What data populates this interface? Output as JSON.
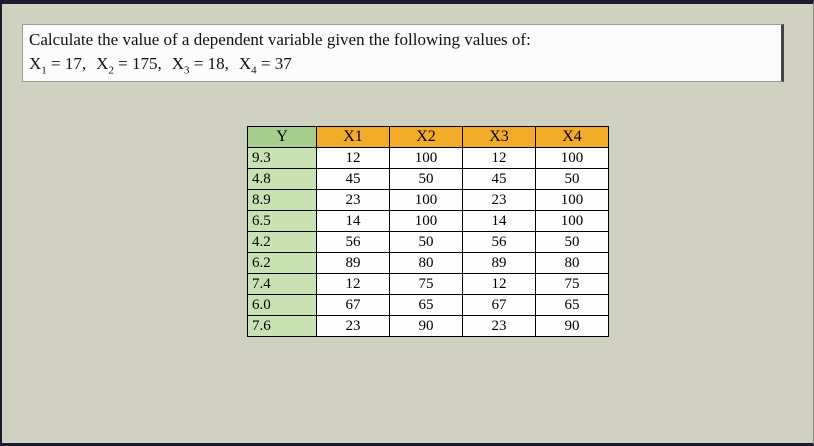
{
  "question": {
    "line1": "Calculate the value of a dependent variable given the following values of:",
    "givens": [
      {
        "name": "X",
        "sub": "1",
        "value": "17"
      },
      {
        "name": "X",
        "sub": "2",
        "value": "175"
      },
      {
        "name": "X",
        "sub": "3",
        "value": "18"
      },
      {
        "name": "X",
        "sub": "4",
        "value": "37"
      }
    ],
    "given_separator": ",  "
  },
  "table": {
    "headers": [
      "Y",
      "X1",
      "X2",
      "X3",
      "X4"
    ],
    "rows": [
      [
        "9.3",
        "12",
        "100",
        "12",
        "100"
      ],
      [
        "4.8",
        "45",
        "50",
        "45",
        "50"
      ],
      [
        "8.9",
        "23",
        "100",
        "23",
        "100"
      ],
      [
        "6.5",
        "14",
        "100",
        "14",
        "100"
      ],
      [
        "4.2",
        "56",
        "50",
        "56",
        "50"
      ],
      [
        "6.2",
        "89",
        "80",
        "89",
        "80"
      ],
      [
        "7.4",
        "12",
        "75",
        "12",
        "75"
      ],
      [
        "6.0",
        "67",
        "65",
        "67",
        "65"
      ],
      [
        "7.6",
        "23",
        "90",
        "23",
        "90"
      ]
    ]
  },
  "colors": {
    "background": "#d1d1c2",
    "frame_border": "#1a1a30",
    "y_header": "#a6ce8e",
    "y_cell": "#c9e2b3",
    "x_header": "#f2ac29",
    "cell_white": "#fdfdfd"
  }
}
